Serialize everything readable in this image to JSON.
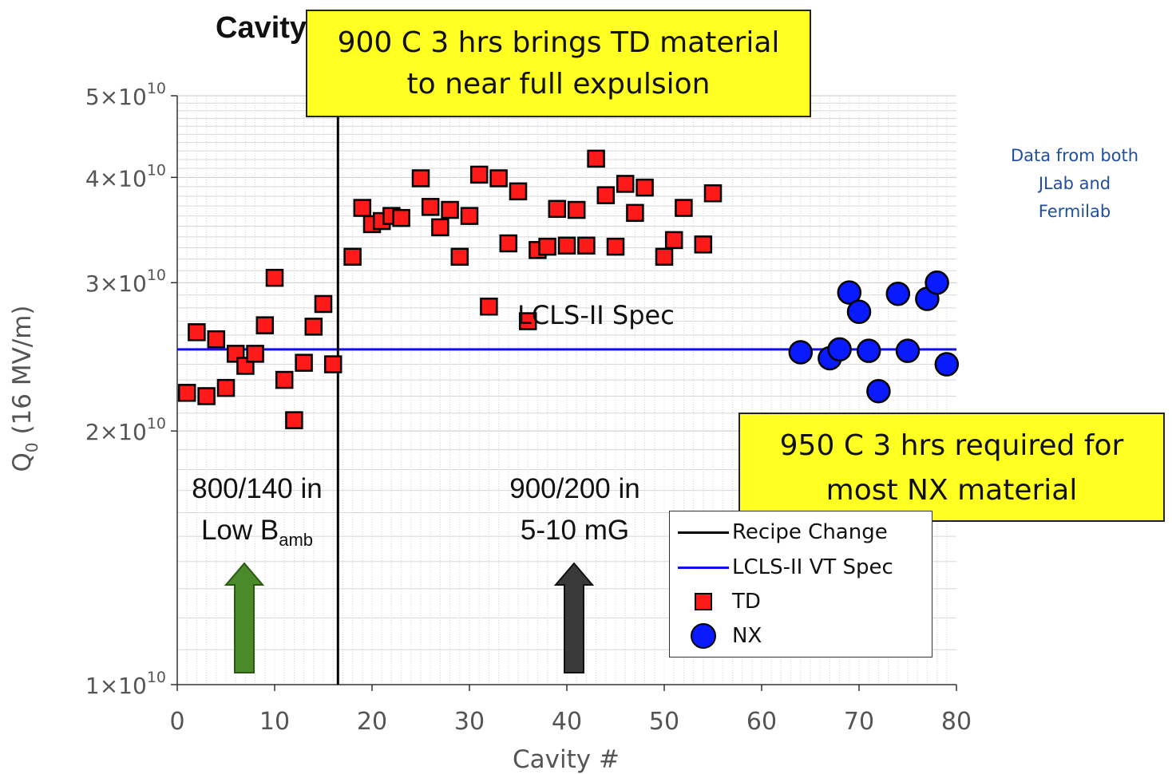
{
  "title": "Cavity Q0 Performance in VT",
  "callouts": {
    "top_line1": "900 C 3 hrs brings TD material",
    "top_line2": "to near full expulsion",
    "bottom_line1": "950 C 3 hrs required for",
    "bottom_line2": "most NX material"
  },
  "side_note": {
    "line1": "Data from both",
    "line2": "JLab and",
    "line3": "Fermilab",
    "color": "#1f4e9e"
  },
  "regions": {
    "left_line1": "800/140 in",
    "left_line2_base": "Low B",
    "left_line2_sub": "amb",
    "right_line1": "900/200 in",
    "right_line2": "5-10 mG"
  },
  "spec_point_label": "LCLS-II Spec",
  "legend": {
    "recipe": "Recipe Change",
    "spec": "LCLS-II VT Spec",
    "td": "TD",
    "nx": "NX"
  },
  "chart_data": {
    "type": "scatter",
    "xlabel": "Cavity #",
    "ylabel_base": "Q",
    "ylabel_sub": "0",
    "ylabel_rest": " (16 MV/m)",
    "xlim": [
      0,
      80
    ],
    "ylim": [
      10000000000.0,
      50000000000.0
    ],
    "yscale": "log",
    "x_ticks": [
      0,
      10,
      20,
      30,
      40,
      50,
      60,
      70,
      80
    ],
    "y_ticks": [
      {
        "mant": "1",
        "exp": "10",
        "value": 10000000000.0
      },
      {
        "mant": "2",
        "exp": "10",
        "value": 20000000000.0
      },
      {
        "mant": "3",
        "exp": "10",
        "value": 30000000000.0
      },
      {
        "mant": "4",
        "exp": "10",
        "value": 40000000000.0
      },
      {
        "mant": "5",
        "exp": "10",
        "value": 50000000000.0
      }
    ],
    "grid": "horizontal minor",
    "legend_position": "bottom-right",
    "recipe_change_x": 16.5,
    "spec_value": 25000000000.0,
    "colors": {
      "td": "#ff1a1a",
      "nx": "#0a1aff",
      "spec": "#1010ee",
      "recipe": "#000000",
      "arrow_left": "#4a8a2a",
      "arrow_right": "#3a3a3a"
    },
    "series": [
      {
        "name": "TD",
        "marker": "square",
        "points": [
          [
            1,
            22200000000.0
          ],
          [
            2,
            26200000000.0
          ],
          [
            3,
            22000000000.0
          ],
          [
            4,
            25700000000.0
          ],
          [
            5,
            22500000000.0
          ],
          [
            6,
            24700000000.0
          ],
          [
            7,
            23900000000.0
          ],
          [
            8,
            24700000000.0
          ],
          [
            9,
            26700000000.0
          ],
          [
            10,
            30400000000.0
          ],
          [
            11,
            23000000000.0
          ],
          [
            12,
            20600000000.0
          ],
          [
            13,
            24100000000.0
          ],
          [
            14,
            26600000000.0
          ],
          [
            15,
            28300000000.0
          ],
          [
            16,
            24000000000.0
          ],
          [
            18,
            32200000000.0
          ],
          [
            19,
            36800000000.0
          ],
          [
            20,
            35200000000.0
          ],
          [
            21,
            35500000000.0
          ],
          [
            22,
            36000000000.0
          ],
          [
            23,
            35800000000.0
          ],
          [
            25,
            39900000000.0
          ],
          [
            26,
            36900000000.0
          ],
          [
            27,
            34900000000.0
          ],
          [
            28,
            36600000000.0
          ],
          [
            29,
            32200000000.0
          ],
          [
            30,
            36000000000.0
          ],
          [
            31,
            40300000000.0
          ],
          [
            32,
            28100000000.0
          ],
          [
            33,
            39900000000.0
          ],
          [
            34,
            33400000000.0
          ],
          [
            35,
            38500000000.0
          ],
          [
            36,
            27000000000.0
          ],
          [
            37,
            32800000000.0
          ],
          [
            38,
            33100000000.0
          ],
          [
            39,
            36700000000.0
          ],
          [
            40,
            33200000000.0
          ],
          [
            41,
            36600000000.0
          ],
          [
            42,
            33200000000.0
          ],
          [
            43,
            42100000000.0
          ],
          [
            44,
            38100000000.0
          ],
          [
            45,
            33100000000.0
          ],
          [
            46,
            39300000000.0
          ],
          [
            47,
            36300000000.0
          ],
          [
            48,
            38900000000.0
          ],
          [
            50,
            32200000000.0
          ],
          [
            51,
            33700000000.0
          ],
          [
            52,
            36800000000.0
          ],
          [
            54,
            33300000000.0
          ],
          [
            55,
            38300000000.0
          ]
        ]
      },
      {
        "name": "NX",
        "marker": "circle",
        "points": [
          [
            64,
            24800000000.0
          ],
          [
            67,
            24400000000.0
          ],
          [
            68,
            25000000000.0
          ],
          [
            69,
            29200000000.0
          ],
          [
            70,
            27700000000.0
          ],
          [
            71,
            24900000000.0
          ],
          [
            72,
            22300000000.0
          ],
          [
            74,
            29100000000.0
          ],
          [
            75,
            24900000000.0
          ],
          [
            77,
            28700000000.0
          ],
          [
            78,
            30000000000.0
          ],
          [
            79,
            24000000000.0
          ]
        ]
      }
    ]
  }
}
